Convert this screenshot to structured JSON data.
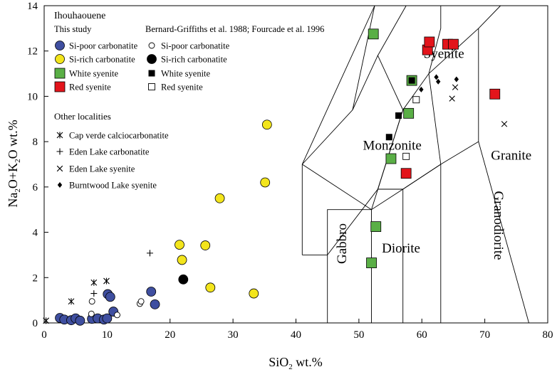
{
  "chart_data": {
    "type": "scatter",
    "title": "Ihouhaouene",
    "xlabel": "SiO₂ wt.%",
    "xlabel_main": "SiO",
    "xlabel_sub": "2",
    "xlabel_tail": " wt.%",
    "ylabel": "Na₂O+K₂O wt.%",
    "ylabel_parts": [
      "Na",
      "2",
      "O+K",
      "2",
      "O wt.%"
    ],
    "xlim": [
      0,
      80
    ],
    "ylim": [
      0,
      14
    ],
    "xticks": [
      0,
      10,
      20,
      30,
      40,
      50,
      60,
      70,
      80
    ],
    "yticks": [
      0,
      2,
      4,
      6,
      8,
      10,
      12,
      14
    ],
    "legend": {
      "group_this_study": "This study",
      "group_bernard": "Bernard-Griffiths et al. 1988; Fourcade et al. 1996",
      "group_other": "Other localities"
    },
    "series": [
      {
        "name": "Si-poor carbonatite",
        "group": "This study",
        "marker": "circle",
        "fill": "#3f4fa0",
        "points": [
          [
            2.5,
            0.22
          ],
          [
            3.2,
            0.15
          ],
          [
            4.3,
            0.12
          ],
          [
            5.0,
            0.2
          ],
          [
            5.7,
            0.1
          ],
          [
            7.6,
            0.18
          ],
          [
            8.5,
            0.2
          ],
          [
            9.5,
            0.15
          ],
          [
            10.0,
            0.2
          ],
          [
            10.1,
            1.27
          ],
          [
            10.5,
            1.15
          ],
          [
            11.0,
            0.5
          ],
          [
            17.0,
            1.38
          ],
          [
            17.6,
            0.82
          ]
        ]
      },
      {
        "name": "Si-rich carbonatite",
        "group": "This study",
        "marker": "circle",
        "fill": "#f3e51c",
        "points": [
          [
            21.5,
            3.45
          ],
          [
            21.9,
            2.78
          ],
          [
            25.6,
            3.42
          ],
          [
            26.4,
            1.56
          ],
          [
            27.9,
            5.5
          ],
          [
            33.3,
            1.3
          ],
          [
            35.1,
            6.2
          ],
          [
            35.4,
            8.75
          ]
        ]
      },
      {
        "name": "White syenite",
        "group": "This study",
        "marker": "square",
        "fill": "#5aaf46",
        "points": [
          [
            52.3,
            12.75
          ],
          [
            52.0,
            2.65
          ],
          [
            52.7,
            4.25
          ],
          [
            55.1,
            7.25
          ],
          [
            57.9,
            9.25
          ],
          [
            58.4,
            10.7
          ]
        ]
      },
      {
        "name": "Red syenite",
        "group": "This study",
        "marker": "square",
        "fill": "#e3141b",
        "points": [
          [
            57.5,
            6.6
          ],
          [
            60.9,
            12.05
          ],
          [
            61.2,
            12.4
          ],
          [
            64.1,
            12.3
          ],
          [
            65.0,
            12.3
          ],
          [
            71.6,
            10.1
          ]
        ]
      },
      {
        "name": "Si-poor carbonatite",
        "group": "Bernard-Griffiths et al. 1988; Fourcade et al. 1996",
        "marker": "circle-open",
        "fill": "#ffffff",
        "points": [
          [
            7.5,
            0.4
          ],
          [
            7.6,
            0.95
          ],
          [
            11.6,
            0.35
          ],
          [
            15.2,
            0.85
          ],
          [
            15.4,
            0.95
          ]
        ]
      },
      {
        "name": "Si-rich carbonatite",
        "group": "Bernard-Griffiths et al. 1988; Fourcade et al. 1996",
        "marker": "circle",
        "fill": "#000000",
        "points": [
          [
            22.1,
            1.92
          ]
        ]
      },
      {
        "name": "White syenite",
        "group": "Bernard-Griffiths et al. 1988; Fourcade et al. 1996",
        "marker": "square",
        "fill": "#000000",
        "points": [
          [
            54.8,
            8.2
          ],
          [
            56.3,
            9.15
          ],
          [
            58.4,
            10.7
          ]
        ]
      },
      {
        "name": "Red syenite",
        "group": "Bernard-Griffiths et al. 1988; Fourcade et al. 1996",
        "marker": "square-open",
        "fill": "#ffffff",
        "points": [
          [
            57.5,
            7.35
          ],
          [
            59.1,
            9.85
          ]
        ]
      },
      {
        "name": "Cap verde calciocarbonatite",
        "group": "Other localities",
        "marker": "asterisk",
        "fill": "#000000",
        "points": [
          [
            0.3,
            0.1
          ],
          [
            4.3,
            0.95
          ],
          [
            7.9,
            1.78
          ],
          [
            9.9,
            1.85
          ]
        ]
      },
      {
        "name": "Eden Lake carbonatite",
        "group": "Other localities",
        "marker": "plus",
        "fill": "#000000",
        "points": [
          [
            7.9,
            1.3
          ],
          [
            16.8,
            3.08
          ]
        ]
      },
      {
        "name": "Eden Lake syenite",
        "group": "Other localities",
        "marker": "cross",
        "fill": "#000000",
        "points": [
          [
            64.8,
            9.9
          ],
          [
            65.3,
            10.4
          ],
          [
            73.1,
            8.78
          ]
        ]
      },
      {
        "name": "Burntwood Lake syenite",
        "group": "Other localities",
        "marker": "diamond",
        "fill": "#000000",
        "points": [
          [
            59.9,
            10.3
          ],
          [
            62.3,
            10.85
          ],
          [
            62.6,
            10.65
          ],
          [
            65.5,
            10.75
          ]
        ]
      }
    ],
    "tas_fields": [
      {
        "name": "Syenite",
        "label_at": [
          63.5,
          11.7
        ]
      },
      {
        "name": "Monzonite",
        "label_at": [
          55.3,
          7.65
        ]
      },
      {
        "name": "Granite",
        "label_at": [
          74.2,
          7.2
        ]
      },
      {
        "name": "Gabbro",
        "label_at": [
          48.0,
          3.5
        ],
        "rotate": -90
      },
      {
        "name": "Diorite",
        "label_at": [
          56.7,
          3.1
        ]
      },
      {
        "name": "Granodiorite",
        "label_at": [
          71.5,
          4.3
        ],
        "rotate": 90
      }
    ],
    "tas_boundaries": [
      [
        [
          41,
          3
        ],
        [
          41,
          7
        ],
        [
          52.5,
          14
        ]
      ],
      [
        [
          41,
          3
        ],
        [
          45,
          3
        ]
      ],
      [
        [
          45,
          0
        ],
        [
          45,
          5
        ],
        [
          52,
          5
        ],
        [
          57,
          5.9
        ],
        [
          63,
          7
        ],
        [
          69,
          8
        ],
        [
          69,
          13
        ]
      ],
      [
        [
          52,
          0
        ],
        [
          52,
          5
        ],
        [
          57,
          9.4
        ],
        [
          61.1,
          11
        ],
        [
          63,
          13
        ],
        [
          63,
          14
        ]
      ],
      [
        [
          57,
          0
        ],
        [
          57,
          5.9
        ]
      ],
      [
        [
          63,
          0
        ],
        [
          63,
          7
        ]
      ],
      [
        [
          69,
          8
        ],
        [
          77,
          0
        ]
      ],
      [
        [
          41,
          7
        ],
        [
          52,
          5
        ]
      ],
      [
        [
          41,
          7
        ],
        [
          49,
          9.4
        ],
        [
          52.5,
          14
        ]
      ],
      [
        [
          49,
          9.4
        ],
        [
          53,
          11.8
        ],
        [
          57,
          9.4
        ]
      ],
      [
        [
          53,
          11.8
        ],
        [
          57.5,
          14
        ]
      ],
      [
        [
          57,
          9.4
        ],
        [
          53,
          5.9
        ],
        [
          45,
          3
        ]
      ],
      [
        [
          53,
          5.9
        ],
        [
          57,
          5.9
        ]
      ],
      [
        [
          57,
          5.9
        ],
        [
          63,
          7
        ]
      ],
      [
        [
          61.1,
          11
        ],
        [
          63,
          7
        ]
      ],
      [
        [
          61.1,
          11
        ],
        [
          69,
          13
        ]
      ],
      [
        [
          69,
          13
        ],
        [
          72.5,
          14
        ]
      ]
    ]
  }
}
